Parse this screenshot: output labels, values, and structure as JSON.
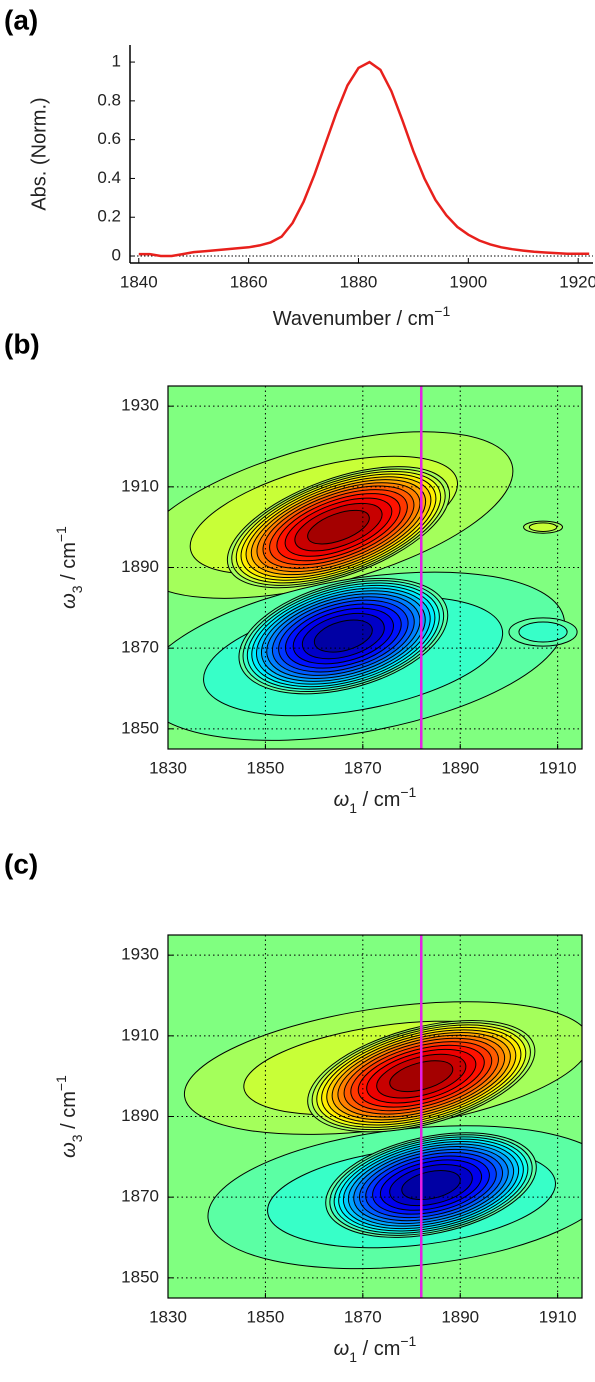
{
  "chart_data": [
    {
      "type": "line",
      "panel_label": "(a)",
      "y_label": "Abs. (Norm.)",
      "x_label": [
        "Wavenumber / cm",
        "−1"
      ],
      "xlim": [
        1838.4,
        1922.7
      ],
      "ylim": [
        -0.036,
        1.088
      ],
      "xticks": [
        1840,
        1860,
        1880,
        1900,
        1920
      ],
      "yticks": [
        0,
        0.2,
        0.4,
        0.6,
        0.8,
        1
      ],
      "hline": 0,
      "color": "#e8201c",
      "x": [
        1840,
        1842,
        1844,
        1846,
        1848,
        1850,
        1852,
        1854,
        1856,
        1858,
        1860,
        1862,
        1864,
        1866,
        1868,
        1870,
        1872,
        1874,
        1876,
        1878,
        1880,
        1882,
        1884,
        1886,
        1888,
        1890,
        1892,
        1894,
        1896,
        1898,
        1900,
        1902,
        1904,
        1906,
        1908,
        1910,
        1912,
        1914,
        1916,
        1918,
        1920,
        1922
      ],
      "values": [
        0.01,
        0.01,
        0.0,
        0.0,
        0.01,
        0.02,
        0.025,
        0.03,
        0.035,
        0.04,
        0.045,
        0.055,
        0.07,
        0.1,
        0.17,
        0.28,
        0.42,
        0.58,
        0.74,
        0.88,
        0.97,
        1.0,
        0.96,
        0.85,
        0.7,
        0.54,
        0.4,
        0.29,
        0.21,
        0.15,
        0.11,
        0.08,
        0.06,
        0.045,
        0.035,
        0.028,
        0.022,
        0.018,
        0.015,
        0.012,
        0.012,
        0.012
      ]
    },
    {
      "type": "contour",
      "panel_label": "(b)",
      "x_label": [
        "ω",
        "1",
        " / cm",
        "−1"
      ],
      "y_label": [
        "ω",
        "3",
        " / cm",
        "−1"
      ],
      "xlim": [
        1830,
        1915
      ],
      "ylim": [
        1845,
        1935
      ],
      "xticks": [
        1830,
        1850,
        1870,
        1890,
        1910
      ],
      "yticks": [
        1850,
        1870,
        1890,
        1910,
        1930
      ],
      "grid": true,
      "levels": 13,
      "peaks": [
        {
          "x": 1862,
          "y": 1903,
          "rx": 40,
          "ry": 17,
          "tilt": 15,
          "amplitude": 0.16
        },
        {
          "x": 1868,
          "y": 1868,
          "rx": 44,
          "ry": 19,
          "tilt": 10,
          "amplitude": -0.16
        },
        {
          "x": 1907,
          "y": 1874,
          "rx": 7,
          "ry": 3.5,
          "tilt": 0,
          "amplitude": -0.15
        },
        {
          "x": 1907,
          "y": 1900,
          "rx": 4,
          "ry": 1.5,
          "tilt": 0,
          "amplitude": 0.15
        },
        {
          "x": 1865,
          "y": 1900,
          "rx": 24,
          "ry": 12,
          "tilt": 20,
          "amplitude": 1
        },
        {
          "x": 1866,
          "y": 1873,
          "rx": 22,
          "ry": 13,
          "tilt": 15,
          "amplitude": -1
        }
      ],
      "vline": 1882,
      "vline_color": "#e61ee6"
    },
    {
      "type": "contour",
      "panel_label": "(c)",
      "x_label": [
        "ω",
        "1",
        " / cm",
        "−1"
      ],
      "y_label": [
        "ω",
        "3",
        " / cm",
        "−1"
      ],
      "xlim": [
        1830,
        1915
      ],
      "ylim": [
        1845,
        1935
      ],
      "xticks": [
        1830,
        1850,
        1870,
        1890,
        1910
      ],
      "yticks": [
        1850,
        1870,
        1890,
        1910,
        1930
      ],
      "grid": true,
      "levels": 13,
      "peaks": [
        {
          "x": 1875,
          "y": 1902,
          "rx": 42,
          "ry": 15,
          "tilt": 8,
          "amplitude": 0.16
        },
        {
          "x": 1880,
          "y": 1870,
          "rx": 42,
          "ry": 17,
          "tilt": 6,
          "amplitude": -0.16
        },
        {
          "x": 1882,
          "y": 1900,
          "rx": 24,
          "ry": 12,
          "tilt": 15,
          "amplitude": 1
        },
        {
          "x": 1884,
          "y": 1873,
          "rx": 22,
          "ry": 12,
          "tilt": 12,
          "amplitude": -1
        }
      ],
      "vline": 1882,
      "vline_color": "#e61ee6"
    }
  ]
}
